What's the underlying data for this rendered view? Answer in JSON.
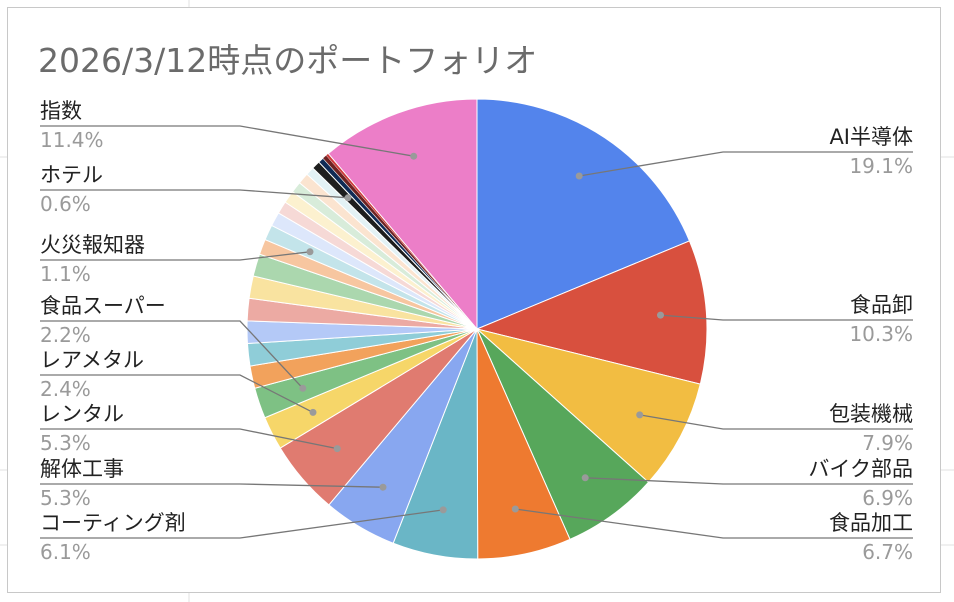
{
  "chart_data": {
    "type": "pie",
    "title": "2026/3/12時点のポートフォリオ",
    "slices": [
      {
        "name": "AI半導体",
        "value": 19.1,
        "label": "19.1%",
        "color": "#5384ec",
        "labeled": true
      },
      {
        "name": "食品卸",
        "value": 10.3,
        "label": "10.3%",
        "color": "#d8503e",
        "labeled": true
      },
      {
        "name": "包装機械",
        "value": 7.9,
        "label": "7.9%",
        "color": "#f2bd42",
        "labeled": true
      },
      {
        "name": "バイク部品",
        "value": 6.9,
        "label": "6.9%",
        "color": "#57a75b",
        "labeled": true
      },
      {
        "name": "食品加工",
        "value": 6.7,
        "label": "6.7%",
        "color": "#ee7a30",
        "labeled": true
      },
      {
        "name": "コーティング剤",
        "value": 6.1,
        "label": "6.1%",
        "color": "#6ab6c6",
        "labeled": true
      },
      {
        "name": "解体工事",
        "value": 5.3,
        "label": "5.3%",
        "color": "#88a7f0",
        "labeled": true
      },
      {
        "name": "レンタル",
        "value": 5.3,
        "label": "5.3%",
        "color": "#e07b70",
        "labeled": true
      },
      {
        "name": "レアメタル",
        "value": 2.4,
        "label": "2.4%",
        "color": "#f6d669",
        "labeled": true
      },
      {
        "name": "食品スーパー",
        "value": 2.2,
        "label": "2.2%",
        "color": "#7ec184",
        "labeled": true
      },
      {
        "name": "",
        "value": 1.6,
        "label": "",
        "color": "#f2a25c",
        "labeled": false
      },
      {
        "name": "",
        "value": 1.6,
        "label": "",
        "color": "#8fcdd8",
        "labeled": false
      },
      {
        "name": "",
        "value": 1.6,
        "label": "",
        "color": "#b4c9f7",
        "labeled": false
      },
      {
        "name": "",
        "value": 1.6,
        "label": "",
        "color": "#ecaaa3",
        "labeled": false
      },
      {
        "name": "",
        "value": 1.6,
        "label": "",
        "color": "#f9e3a0",
        "labeled": false
      },
      {
        "name": "",
        "value": 1.6,
        "label": "",
        "color": "#abd7ae",
        "labeled": false
      },
      {
        "name": "",
        "value": 1.1,
        "label": "",
        "color": "#f7c6a0",
        "labeled": false
      },
      {
        "name": "火災報知器",
        "value": 1.1,
        "label": "1.1%",
        "color": "#c3e4ea",
        "labeled": true
      },
      {
        "name": "",
        "value": 1.0,
        "label": "",
        "color": "#dde7fb",
        "labeled": false
      },
      {
        "name": "",
        "value": 0.9,
        "label": "",
        "color": "#f6d9d6",
        "labeled": false
      },
      {
        "name": "",
        "value": 0.9,
        "label": "",
        "color": "#fcf1cf",
        "labeled": false
      },
      {
        "name": "",
        "value": 0.8,
        "label": "",
        "color": "#d8ecda",
        "labeled": false
      },
      {
        "name": "",
        "value": 0.8,
        "label": "",
        "color": "#fbe4d0",
        "labeled": false
      },
      {
        "name": "",
        "value": 0.6,
        "label": "",
        "color": "#e3f2f5",
        "labeled": false
      },
      {
        "name": "ホテル",
        "value": 0.6,
        "label": "0.6%",
        "color": "#1e1e1e",
        "labeled": true
      },
      {
        "name": "",
        "value": 0.4,
        "label": "",
        "color": "#0f2a55",
        "labeled": false
      },
      {
        "name": "",
        "value": 0.3,
        "label": "",
        "color": "#6e2222",
        "labeled": false
      },
      {
        "name": "",
        "value": 0.2,
        "label": "",
        "color": "#cc3b3b",
        "labeled": false
      },
      {
        "name": "指数",
        "value": 11.4,
        "label": "11.4%",
        "color": "#ec7ec8",
        "labeled": true
      }
    ],
    "legend": "none",
    "labels": "outside with leader lines"
  }
}
